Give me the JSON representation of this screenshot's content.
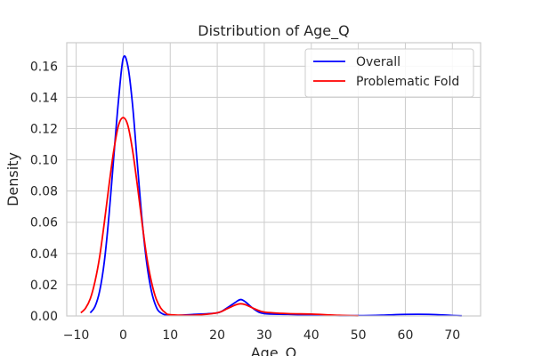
{
  "chart_data": {
    "type": "line",
    "title": "Distribution of Age_Q",
    "xlabel": "Age_Q",
    "ylabel": "Density",
    "xlim": [
      -12,
      76
    ],
    "ylim": [
      0,
      0.175
    ],
    "xticks": [
      -10,
      0,
      10,
      20,
      30,
      40,
      50,
      60,
      70
    ],
    "xtick_labels": [
      "−10",
      "0",
      "10",
      "20",
      "30",
      "40",
      "50",
      "60",
      "70"
    ],
    "yticks": [
      0,
      0.02,
      0.04,
      0.06,
      0.08,
      0.1,
      0.12,
      0.14,
      0.16
    ],
    "ytick_labels": [
      "0.00",
      "0.02",
      "0.04",
      "0.06",
      "0.08",
      "0.10",
      "0.12",
      "0.14",
      "0.16"
    ],
    "grid": true,
    "legend_position": "top-right",
    "series": [
      {
        "name": "Overall",
        "color": "#0000ff",
        "x": [
          -7,
          -6,
          -5,
          -4,
          -3,
          -2,
          -1,
          0,
          1,
          2,
          3,
          4,
          5,
          6,
          7,
          8,
          10,
          15,
          20,
          22,
          24,
          25,
          26,
          28,
          30,
          35,
          40,
          45,
          50,
          55,
          60,
          65,
          70,
          72
        ],
        "y": [
          0.002,
          0.006,
          0.016,
          0.035,
          0.065,
          0.102,
          0.138,
          0.165,
          0.16,
          0.135,
          0.098,
          0.062,
          0.034,
          0.016,
          0.006,
          0.002,
          0.0003,
          0.001,
          0.002,
          0.005,
          0.009,
          0.0105,
          0.009,
          0.004,
          0.0015,
          0.001,
          0.0005,
          0.0002,
          0.0002,
          0.0005,
          0.001,
          0.001,
          0.0003,
          0.0001
        ]
      },
      {
        "name": "Problematic Fold",
        "color": "#ff0000",
        "x": [
          -9,
          -8,
          -7,
          -6,
          -5,
          -4,
          -3,
          -2,
          -1,
          0,
          1,
          2,
          3,
          4,
          5,
          6,
          7,
          8,
          9,
          10,
          15,
          20,
          22,
          24,
          25,
          26,
          28,
          30,
          35,
          40,
          45,
          50
        ],
        "y": [
          0.002,
          0.005,
          0.011,
          0.022,
          0.038,
          0.06,
          0.084,
          0.106,
          0.122,
          0.127,
          0.122,
          0.106,
          0.084,
          0.06,
          0.038,
          0.022,
          0.011,
          0.005,
          0.002,
          0.0008,
          0.0005,
          0.002,
          0.0045,
          0.0072,
          0.0078,
          0.0072,
          0.0045,
          0.0025,
          0.0015,
          0.0012,
          0.0005,
          0.0001
        ]
      }
    ]
  }
}
